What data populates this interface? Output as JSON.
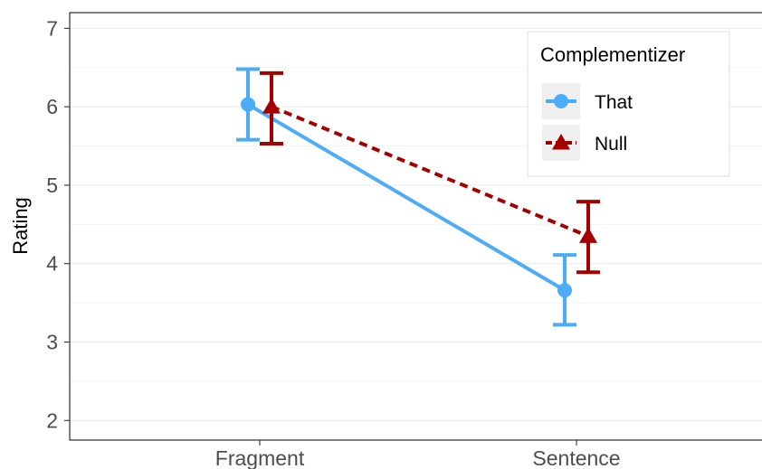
{
  "chart_data": {
    "type": "line",
    "xlabel": "",
    "ylabel": "Rating",
    "categories": [
      "Fragment",
      "Sentence"
    ],
    "ylim": [
      1.75,
      7.2
    ],
    "yticks": [
      2,
      3,
      4,
      5,
      6,
      7
    ],
    "grid": true,
    "legend": {
      "title": "Complementizer",
      "position": "top-right"
    },
    "series": [
      {
        "name": "That",
        "color": "#4DACF7",
        "marker": "circle",
        "linestyle": "solid",
        "values": [
          6.03,
          3.66
        ],
        "error_low": [
          5.58,
          3.22
        ],
        "error_high": [
          6.48,
          4.11
        ]
      },
      {
        "name": "Null",
        "color": "#A50000",
        "marker": "triangle",
        "linestyle": "dashed",
        "values": [
          6.0,
          4.35
        ],
        "error_low": [
          5.53,
          3.89
        ],
        "error_high": [
          6.43,
          4.79
        ]
      }
    ]
  }
}
